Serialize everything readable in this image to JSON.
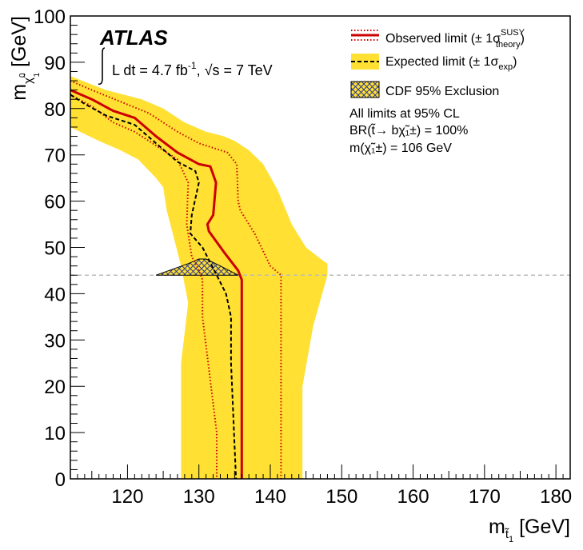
{
  "chart_data": {
    "type": "line",
    "experiment_label": "ATLAS",
    "luminosity_label": "L dt = 4.7 fb",
    "luminosity_unit_exp": "-1",
    "energy_label": ", √s = 7 TeV",
    "x_axis": {
      "label_main": "m",
      "label_sub": "t̃",
      "label_subsub": "1",
      "label_unit": " [GeV]",
      "range": [
        112,
        182
      ],
      "ticks": [
        120,
        130,
        140,
        150,
        160,
        170,
        180
      ]
    },
    "y_axis": {
      "label_main": "m",
      "label_sub": "χ̃",
      "label_subsup": "0",
      "label_subsub": "1",
      "label_unit": " [GeV]",
      "range": [
        0,
        100
      ],
      "ticks": [
        0,
        10,
        20,
        30,
        40,
        50,
        60,
        70,
        80,
        90,
        100
      ]
    },
    "legend": [
      {
        "key": "observed",
        "text": "Observed limit (± 1σ",
        "sup": "SUSY",
        "sub": "theory",
        "close": ")"
      },
      {
        "key": "expected",
        "text": "Expected limit (± 1σ",
        "sub": "exp",
        "close": ")"
      },
      {
        "key": "cdf",
        "text": "CDF 95% Exclusion"
      }
    ],
    "notes": [
      "All limits at 95% CL",
      "BR(t̃→ bχ̃₁±) = 100%",
      "m(χ̃₁±) = 106 GeV"
    ],
    "series": [
      {
        "name": "Observed limit",
        "color": "#cc0000",
        "points": [
          [
            112,
            84
          ],
          [
            115,
            82
          ],
          [
            118,
            79.5
          ],
          [
            121,
            78
          ],
          [
            124,
            74
          ],
          [
            127,
            70.5
          ],
          [
            130,
            68
          ],
          [
            131.6,
            67.5
          ],
          [
            132.4,
            64
          ],
          [
            132,
            57
          ],
          [
            131.2,
            55
          ],
          [
            131.4,
            53.5
          ],
          [
            133.5,
            49
          ],
          [
            135.5,
            45
          ],
          [
            136,
            43
          ],
          [
            136,
            0
          ]
        ]
      },
      {
        "name": "Observed limit +1σ theory",
        "color": "#cc0000",
        "points": [
          [
            112,
            86
          ],
          [
            115,
            84
          ],
          [
            119,
            81.5
          ],
          [
            123,
            79
          ],
          [
            127,
            75
          ],
          [
            130,
            72.5
          ],
          [
            134,
            70.5
          ],
          [
            135.3,
            68
          ],
          [
            135.5,
            60
          ],
          [
            135.8,
            58
          ],
          [
            137.8,
            53
          ],
          [
            140,
            46
          ],
          [
            141.5,
            44
          ],
          [
            141.5,
            0
          ]
        ]
      },
      {
        "name": "Observed limit -1σ theory",
        "color": "#cc0000",
        "points": [
          [
            112,
            83
          ],
          [
            115,
            80.5
          ],
          [
            118,
            77
          ],
          [
            121,
            75
          ],
          [
            124,
            72
          ],
          [
            127,
            69
          ],
          [
            128.5,
            64
          ],
          [
            128.3,
            55
          ],
          [
            129,
            48
          ],
          [
            130,
            45
          ],
          [
            130.5,
            43
          ],
          [
            130.5,
            35
          ],
          [
            132.5,
            10
          ],
          [
            132.5,
            0
          ]
        ]
      },
      {
        "name": "Expected limit",
        "color": "#000000",
        "points": [
          [
            112,
            83
          ],
          [
            114,
            81
          ],
          [
            117,
            78.5
          ],
          [
            121,
            76.5
          ],
          [
            124,
            72.5
          ],
          [
            127,
            68.5
          ],
          [
            129.5,
            66.5
          ],
          [
            130,
            64
          ],
          [
            129,
            57
          ],
          [
            128.8,
            53
          ],
          [
            130.5,
            50
          ],
          [
            132.5,
            44
          ],
          [
            133.8,
            40
          ],
          [
            134.5,
            35
          ],
          [
            134.5,
            25
          ],
          [
            135.2,
            0
          ]
        ]
      }
    ],
    "expected_band": {
      "name": "Expected limit ± 1σ exp",
      "color": "#ffe033",
      "upper": [
        [
          112,
          87
        ],
        [
          117,
          84
        ],
        [
          122,
          82
        ],
        [
          125,
          80
        ],
        [
          128,
          77
        ],
        [
          131,
          75
        ],
        [
          133.5,
          74
        ],
        [
          135,
          73
        ],
        [
          137,
          71
        ],
        [
          139,
          68
        ],
        [
          141,
          62.5
        ],
        [
          143,
          55
        ],
        [
          145,
          50
        ],
        [
          147.5,
          47
        ],
        [
          148,
          46.5
        ],
        [
          148,
          44
        ],
        [
          146,
          33
        ],
        [
          144.5,
          20
        ],
        [
          144.5,
          0
        ]
      ],
      "lower": [
        [
          127.5,
          0
        ],
        [
          127.5,
          25
        ],
        [
          128.5,
          38
        ],
        [
          127.5,
          46
        ],
        [
          126.5,
          52
        ],
        [
          125.5,
          58
        ],
        [
          125,
          63
        ],
        [
          124,
          65
        ],
        [
          121.5,
          69
        ],
        [
          119,
          71
        ],
        [
          116,
          73
        ],
        [
          112,
          76
        ]
      ]
    },
    "cdf_exclusion": {
      "name": "CDF 95% Exclusion",
      "color": "#2c3a8c",
      "points": [
        [
          124,
          44
        ],
        [
          128.5,
          46.5
        ],
        [
          130,
          47.5
        ],
        [
          131,
          47.5
        ],
        [
          133,
          46
        ],
        [
          135.5,
          44
        ]
      ]
    },
    "reference_line": {
      "y": 44,
      "color": "#bbbbbb",
      "style": "dashed"
    },
    "grid": false,
    "legend_position": "top-right"
  }
}
